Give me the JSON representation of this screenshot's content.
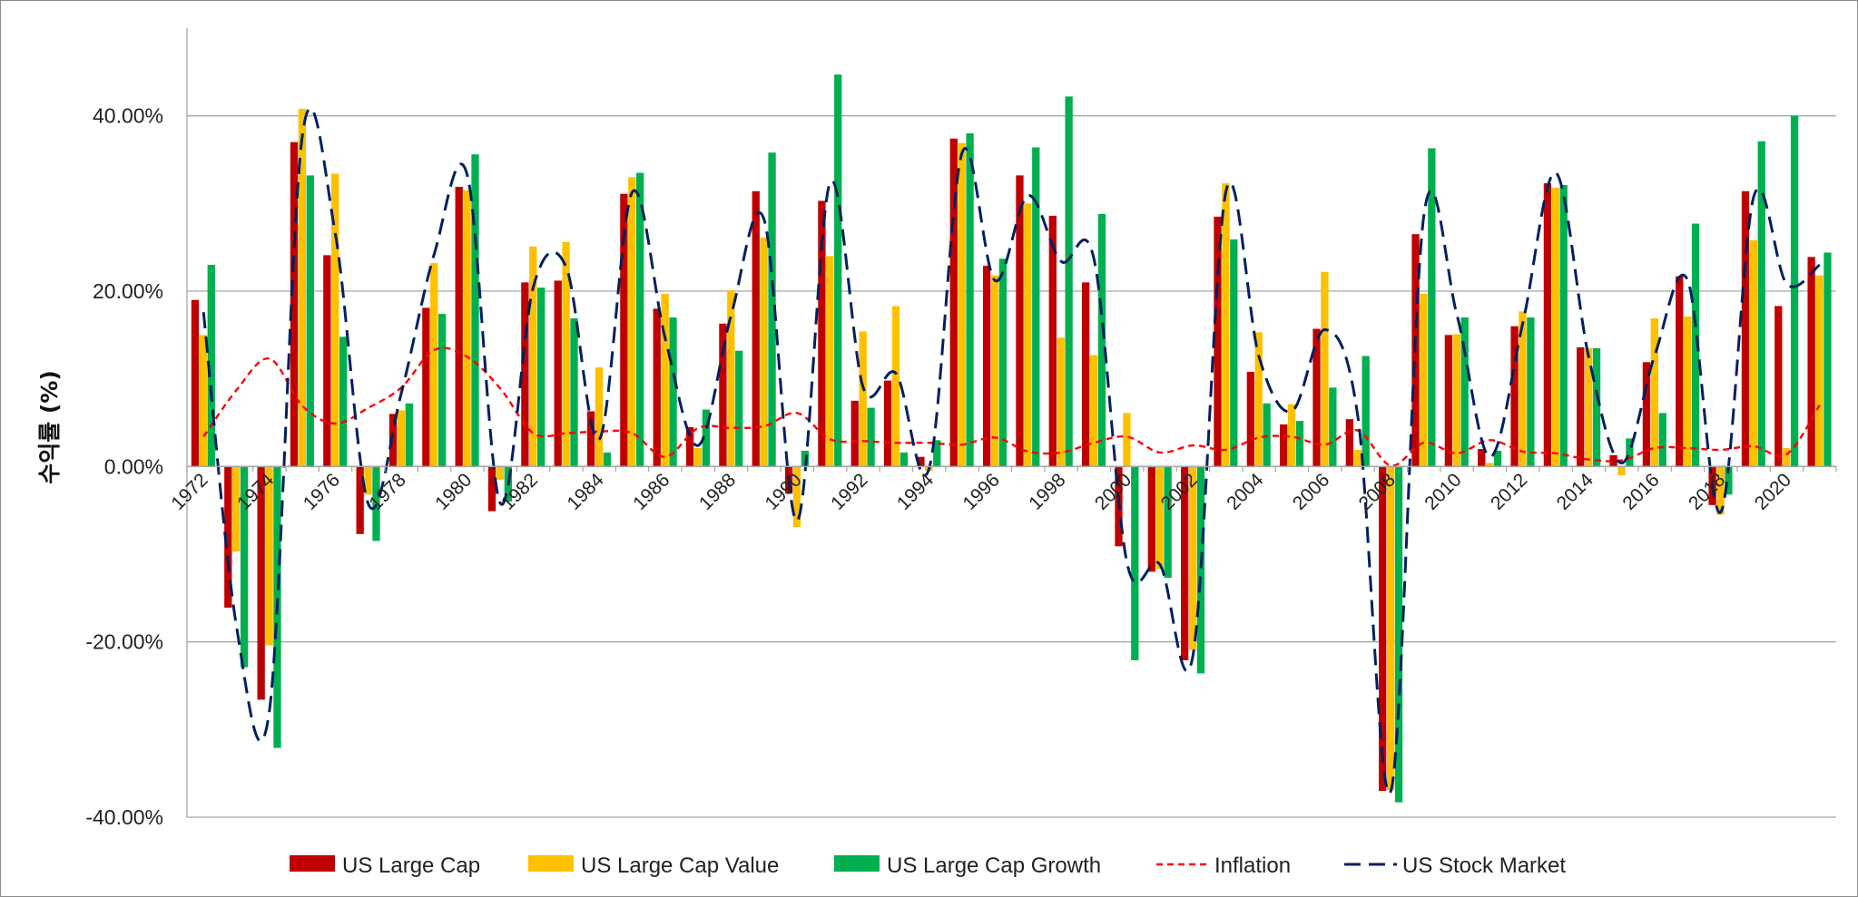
{
  "chart_data": {
    "type": "bar",
    "title": "",
    "xlabel": "",
    "ylabel": "수익률 (%)",
    "ylim": [
      -40,
      50
    ],
    "yticks": [
      -40,
      -20,
      0,
      20,
      40
    ],
    "ytick_labels": [
      "-40.00%",
      "-20.00%",
      "0.00%",
      "20.00%",
      "40.00%"
    ],
    "grid": true,
    "legend_position": "bottom",
    "x": [
      1972,
      1973,
      1974,
      1975,
      1976,
      1977,
      1978,
      1979,
      1980,
      1981,
      1982,
      1983,
      1984,
      1985,
      1986,
      1987,
      1988,
      1989,
      1990,
      1991,
      1992,
      1993,
      1994,
      1995,
      1996,
      1997,
      1998,
      1999,
      2000,
      2001,
      2002,
      2003,
      2004,
      2005,
      2006,
      2007,
      2008,
      2009,
      2010,
      2011,
      2012,
      2013,
      2014,
      2015,
      2016,
      2017,
      2018,
      2019,
      2020,
      2021
    ],
    "xtick_labels": [
      "1972",
      "1974",
      "1976",
      "1978",
      "1980",
      "1982",
      "1984",
      "1986",
      "1988",
      "1990",
      "1992",
      "1994",
      "1996",
      "1998",
      "2000",
      "2002",
      "2004",
      "2006",
      "2008",
      "2010",
      "2012",
      "2014",
      "2016",
      "2018",
      "2020"
    ],
    "series": [
      {
        "name": "US Large Cap",
        "kind": "bar",
        "color": "#c00000",
        "values": [
          19.0,
          -16.1,
          -26.6,
          37.0,
          24.1,
          -7.7,
          6.0,
          18.1,
          31.9,
          -5.1,
          21.0,
          21.2,
          6.3,
          31.1,
          18.0,
          4.5,
          16.3,
          31.4,
          -3.1,
          30.3,
          7.5,
          9.8,
          1.1,
          37.4,
          22.9,
          33.2,
          28.6,
          21.0,
          -9.1,
          -12.0,
          -22.1,
          28.5,
          10.8,
          4.8,
          15.7,
          5.4,
          -37.0,
          26.5,
          15.0,
          2.0,
          16.0,
          32.3,
          13.6,
          1.3,
          11.9,
          21.7,
          -4.4,
          31.4,
          18.3,
          23.9
        ]
      },
      {
        "name": "US Large Cap Value",
        "kind": "bar",
        "color": "#ffc000",
        "values": [
          15.0,
          -9.7,
          -20.4,
          40.8,
          33.4,
          -3.2,
          6.4,
          23.2,
          31.5,
          -1.5,
          25.1,
          25.6,
          11.3,
          33.0,
          19.7,
          2.1,
          20.1,
          26.1,
          -6.9,
          24.0,
          15.4,
          18.3,
          -0.5,
          36.9,
          21.8,
          30.0,
          14.7,
          12.7,
          6.1,
          -11.7,
          -20.9,
          32.3,
          15.3,
          7.1,
          22.2,
          1.9,
          -36.9,
          19.7,
          15.1,
          0.4,
          17.7,
          31.8,
          13.5,
          -1.0,
          16.9,
          17.1,
          -5.5,
          25.8,
          2.1,
          21.8
        ]
      },
      {
        "name": "US Large Cap Growth",
        "kind": "bar",
        "color": "#00b050",
        "values": [
          23.0,
          -22.9,
          -32.1,
          33.2,
          14.8,
          -8.5,
          7.2,
          17.4,
          35.6,
          -4.0,
          20.4,
          16.9,
          1.6,
          33.5,
          17.0,
          6.5,
          13.2,
          35.8,
          1.8,
          44.7,
          6.7,
          1.6,
          3.0,
          38.0,
          23.7,
          36.4,
          42.2,
          28.8,
          -22.1,
          -12.7,
          -23.6,
          25.9,
          7.2,
          5.2,
          9.0,
          12.6,
          -38.3,
          36.3,
          17.0,
          1.8,
          17.0,
          32.1,
          13.5,
          3.2,
          6.1,
          27.7,
          -3.2,
          37.1,
          40.0,
          24.4
        ]
      },
      {
        "name": "Inflation",
        "kind": "line",
        "style": "dotted",
        "color": "#ff0000",
        "values": [
          3.4,
          8.7,
          12.3,
          6.9,
          4.9,
          6.7,
          9.0,
          13.3,
          12.5,
          8.9,
          3.8,
          3.8,
          4.0,
          3.8,
          1.1,
          4.4,
          4.4,
          4.6,
          6.1,
          3.1,
          2.9,
          2.7,
          2.7,
          2.5,
          3.3,
          1.7,
          1.6,
          2.7,
          3.4,
          1.6,
          2.4,
          1.9,
          3.3,
          3.4,
          2.5,
          4.1,
          0.1,
          2.7,
          1.5,
          3.0,
          1.7,
          1.5,
          0.8,
          0.7,
          2.1,
          2.1,
          1.9,
          2.3,
          1.4,
          7.0
        ]
      },
      {
        "name": "US Stock Market",
        "kind": "line",
        "style": "dashed",
        "color": "#002060",
        "values": [
          17.6,
          -18.2,
          -27.8,
          37.8,
          26.5,
          -4.3,
          8.4,
          24.3,
          33.2,
          -4.2,
          20.5,
          22.7,
          3.1,
          31.3,
          14.6,
          2.4,
          17.3,
          28.1,
          -6.2,
          32.4,
          9.0,
          10.6,
          -0.2,
          35.8,
          21.2,
          30.9,
          23.4,
          23.6,
          -11.0,
          -11.2,
          -21.5,
          31.4,
          12.5,
          6.3,
          15.6,
          5.6,
          -37.0,
          28.7,
          17.3,
          1.1,
          16.4,
          33.5,
          12.4,
          0.4,
          12.7,
          21.2,
          -5.2,
          30.8,
          20.8,
          23.0
        ]
      }
    ]
  }
}
